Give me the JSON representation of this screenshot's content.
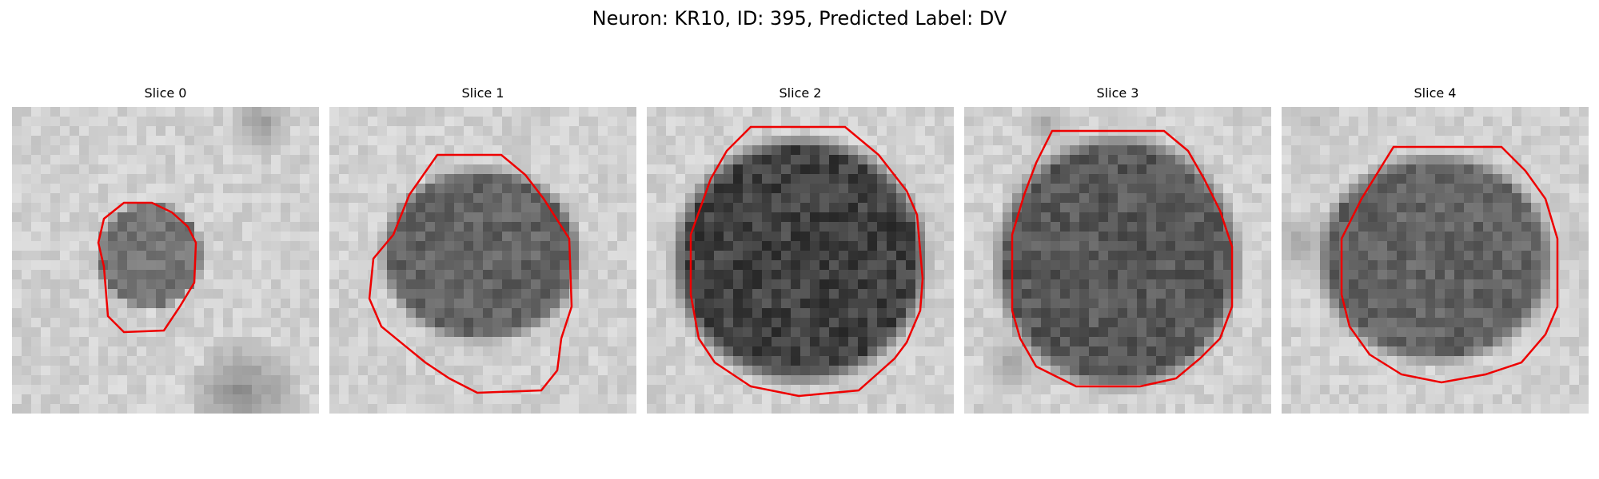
{
  "figure": {
    "title": "Neuron: KR10, ID: 395, Predicted Label: DV"
  },
  "contour_color": "#ee0000",
  "panels": [
    {
      "title": "Slice 0",
      "image": "grayscale-microscopy-slice-with-red-contour"
    },
    {
      "title": "Slice 1",
      "image": "grayscale-microscopy-slice-with-red-contour"
    },
    {
      "title": "Slice 2",
      "image": "grayscale-microscopy-slice-with-red-contour"
    },
    {
      "title": "Slice 3",
      "image": "grayscale-microscopy-slice-with-red-contour"
    },
    {
      "title": "Slice 4",
      "image": "grayscale-microscopy-slice-with-red-contour"
    }
  ]
}
